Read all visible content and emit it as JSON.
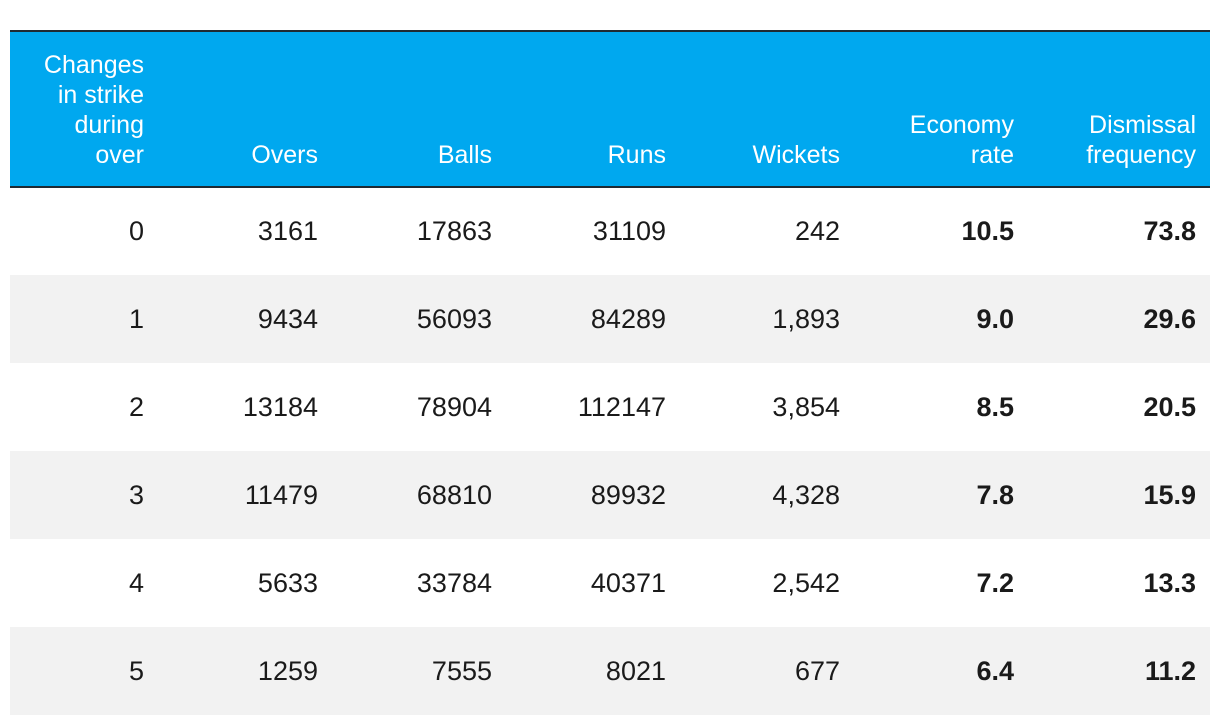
{
  "chart_data": {
    "type": "table",
    "columns": [
      "Changes\nin strike\nduring\nover",
      "Overs",
      "Balls",
      "Runs",
      "Wickets",
      "Economy\nrate",
      "Dismissal\nfrequency"
    ],
    "bold_columns": [
      5,
      6
    ],
    "rows": [
      [
        "0",
        "3161",
        "17863",
        "31109",
        "242",
        "10.5",
        "73.8"
      ],
      [
        "1",
        "9434",
        "56093",
        "84289",
        "1,893",
        "9.0",
        "29.6"
      ],
      [
        "2",
        "13184",
        "78904",
        "112147",
        "3,854",
        "8.5",
        "20.5"
      ],
      [
        "3",
        "11479",
        "68810",
        "89932",
        "4,328",
        "7.8",
        "15.9"
      ],
      [
        "4",
        "5633",
        "33784",
        "40371",
        "2,542",
        "7.2",
        "13.3"
      ],
      [
        "5",
        "1259",
        "7555",
        "8021",
        "677",
        "6.4",
        "11.2"
      ]
    ]
  },
  "colors": {
    "header_background": "#00a8ef",
    "header_text": "#ffffff",
    "stripe": "#f2f2f2",
    "rule": "#1f2a33"
  }
}
